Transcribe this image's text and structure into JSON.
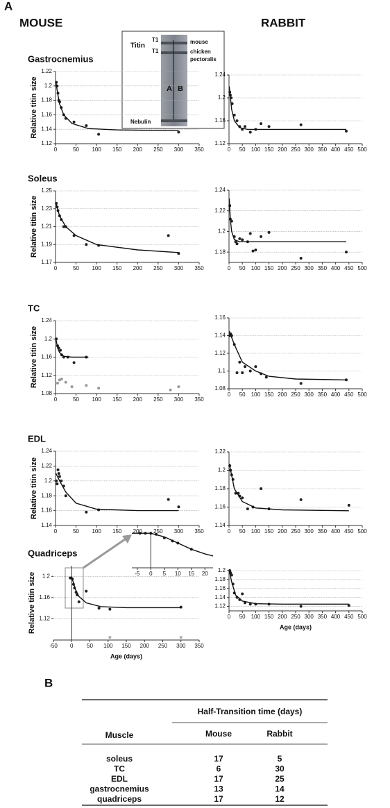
{
  "figure": {
    "panel_a": "A",
    "mouse": "MOUSE",
    "rabbit": "RABBIT"
  },
  "gel": {
    "titin": "Titin",
    "t1_top": "T1",
    "t1_bottom": "T1",
    "mouse": "mouse",
    "chicken": "chicken",
    "pectoralis": "pectoralis",
    "lane_a": "A",
    "lane_b": "B",
    "nebulin": "Nebulin"
  },
  "chart_data": [
    {
      "type": "scatter",
      "title": "Gastrocnemius",
      "ylabel": "Relative titin size",
      "xlim": [
        0,
        350
      ],
      "xticks": [
        0,
        50,
        100,
        150,
        200,
        250,
        300,
        350
      ],
      "ylim": [
        1.12,
        1.22
      ],
      "yticks": [
        1.12,
        1.14,
        1.16,
        1.18,
        1.2,
        1.22
      ],
      "grid": true,
      "series": [
        {
          "color": "#222",
          "x": [
            2,
            4,
            6,
            8,
            10,
            14,
            20,
            25,
            45,
            75,
            105,
            300
          ],
          "y": [
            1.205,
            1.2,
            1.19,
            1.18,
            1.178,
            1.17,
            1.16,
            1.155,
            1.15,
            1.145,
            1.133,
            1.136
          ]
        }
      ],
      "fit": {
        "x": [
          1,
          5,
          10,
          20,
          40,
          80,
          150,
          300
        ],
        "y": [
          1.205,
          1.19,
          1.175,
          1.16,
          1.148,
          1.141,
          1.139,
          1.138
        ]
      }
    },
    {
      "type": "scatter",
      "xlim": [
        0,
        500
      ],
      "xticks": [
        0,
        50,
        100,
        150,
        200,
        250,
        300,
        350,
        400,
        450,
        500
      ],
      "ylim": [
        1.12,
        1.24
      ],
      "yticks": [
        1.12,
        1.16,
        1.2,
        1.24
      ],
      "grid": true,
      "series": [
        {
          "color": "#222",
          "x": [
            3,
            5,
            8,
            12,
            20,
            30,
            40,
            50,
            60,
            80,
            100,
            120,
            150,
            270,
            440
          ],
          "y": [
            1.21,
            1.205,
            1.2,
            1.19,
            1.17,
            1.16,
            1.15,
            1.145,
            1.15,
            1.14,
            1.145,
            1.155,
            1.15,
            1.153,
            1.142
          ]
        }
      ],
      "fit": {
        "x": [
          1,
          10,
          20,
          40,
          70,
          150,
          440
        ],
        "y": [
          1.22,
          1.18,
          1.16,
          1.148,
          1.145,
          1.145,
          1.145
        ]
      }
    },
    {
      "type": "scatter",
      "title": "Soleus",
      "ylabel": "Relative titin size",
      "xlim": [
        0,
        350
      ],
      "xticks": [
        0,
        50,
        100,
        150,
        200,
        250,
        300,
        350
      ],
      "ylim": [
        1.17,
        1.25
      ],
      "yticks": [
        1.17,
        1.19,
        1.21,
        1.23,
        1.25
      ],
      "grid": true,
      "series": [
        {
          "color": "#222",
          "x": [
            2,
            4,
            6,
            10,
            14,
            20,
            25,
            45,
            75,
            105,
            275,
            300
          ],
          "y": [
            1.236,
            1.232,
            1.228,
            1.222,
            1.218,
            1.21,
            1.21,
            1.2,
            1.19,
            1.189,
            1.2,
            1.18
          ]
        }
      ],
      "fit": {
        "x": [
          1,
          10,
          25,
          50,
          100,
          200,
          300
        ],
        "y": [
          1.236,
          1.222,
          1.21,
          1.2,
          1.19,
          1.184,
          1.181
        ]
      }
    },
    {
      "type": "scatter",
      "xlim": [
        0,
        500
      ],
      "xticks": [
        0,
        50,
        100,
        150,
        200,
        250,
        300,
        350,
        400,
        450,
        500
      ],
      "ylim": [
        1.17,
        1.24
      ],
      "yticks": [
        1.18,
        1.2,
        1.22,
        1.24
      ],
      "grid": true,
      "series": [
        {
          "color": "#222",
          "x": [
            3,
            5,
            10,
            20,
            25,
            30,
            40,
            50,
            70,
            80,
            90,
            100,
            120,
            150,
            270,
            440
          ],
          "y": [
            1.225,
            1.212,
            1.21,
            1.195,
            1.19,
            1.188,
            1.193,
            1.192,
            1.19,
            1.198,
            1.181,
            1.182,
            1.195,
            1.199,
            1.174,
            1.18
          ]
        }
      ],
      "fit": {
        "x": [
          1,
          5,
          10,
          20,
          40,
          440
        ],
        "y": [
          1.232,
          1.212,
          1.2,
          1.192,
          1.19,
          1.19
        ]
      }
    },
    {
      "type": "scatter",
      "title": "TC",
      "ylabel": "Relative titin size",
      "xlim": [
        0,
        350
      ],
      "xticks": [
        0,
        50,
        100,
        150,
        200,
        250,
        300,
        350
      ],
      "ylim": [
        1.08,
        1.24
      ],
      "yticks": [
        1.08,
        1.12,
        1.16,
        1.2,
        1.24
      ],
      "grid": true,
      "series": [
        {
          "color": "#222",
          "x": [
            2,
            5,
            8,
            12,
            15,
            20,
            30,
            45,
            75
          ],
          "y": [
            1.2,
            1.185,
            1.18,
            1.175,
            1.165,
            1.16,
            1.16,
            1.148,
            1.16
          ]
        },
        {
          "color": "#999",
          "x": [
            5,
            10,
            15,
            25,
            40,
            75,
            105,
            280,
            300
          ],
          "y": [
            1.103,
            1.11,
            1.112,
            1.105,
            1.095,
            1.098,
            1.092,
            1.088,
            1.095
          ]
        }
      ],
      "fit": {
        "x": [
          1,
          5,
          10,
          20,
          40,
          80
        ],
        "y": [
          1.2,
          1.18,
          1.17,
          1.162,
          1.16,
          1.16
        ]
      }
    },
    {
      "type": "scatter",
      "xlim": [
        0,
        500
      ],
      "xticks": [
        0,
        50,
        100,
        150,
        200,
        250,
        300,
        350,
        400,
        450,
        500
      ],
      "ylim": [
        1.08,
        1.16
      ],
      "yticks": [
        1.08,
        1.1,
        1.12,
        1.14,
        1.16
      ],
      "grid": true,
      "series": [
        {
          "color": "#222",
          "x": [
            3,
            6,
            10,
            20,
            30,
            40,
            50,
            60,
            80,
            100,
            120,
            140,
            270,
            440
          ],
          "y": [
            1.14,
            1.142,
            1.14,
            1.13,
            1.098,
            1.11,
            1.098,
            1.105,
            1.1,
            1.105,
            1.097,
            1.093,
            1.086,
            1.09
          ]
        }
      ],
      "fit": {
        "x": [
          1,
          20,
          50,
          100,
          150,
          250,
          440
        ],
        "y": [
          1.145,
          1.13,
          1.11,
          1.1,
          1.094,
          1.091,
          1.09
        ]
      }
    },
    {
      "type": "scatter",
      "title": "EDL",
      "ylabel": "Relative titin size",
      "xlim": [
        0,
        350
      ],
      "xticks": [
        0,
        50,
        100,
        150,
        200,
        250,
        300,
        350
      ],
      "ylim": [
        1.14,
        1.24
      ],
      "yticks": [
        1.14,
        1.16,
        1.18,
        1.2,
        1.22,
        1.24
      ],
      "grid": true,
      "series": [
        {
          "color": "#222",
          "x": [
            2,
            4,
            6,
            8,
            10,
            14,
            20,
            25,
            75,
            105,
            275,
            300
          ],
          "y": [
            1.2,
            1.196,
            1.215,
            1.21,
            1.206,
            1.2,
            1.193,
            1.18,
            1.158,
            1.161,
            1.175,
            1.165
          ]
        }
      ],
      "fit": {
        "x": [
          1,
          10,
          25,
          50,
          100,
          200,
          300
        ],
        "y": [
          1.21,
          1.2,
          1.185,
          1.17,
          1.162,
          1.16,
          1.16
        ]
      }
    },
    {
      "type": "scatter",
      "xlim": [
        0,
        500
      ],
      "xticks": [
        0,
        50,
        100,
        150,
        200,
        250,
        300,
        350,
        400,
        450,
        500
      ],
      "ylim": [
        1.14,
        1.22
      ],
      "yticks": [
        1.14,
        1.16,
        1.18,
        1.2,
        1.22
      ],
      "grid": true,
      "series": [
        {
          "color": "#222",
          "x": [
            3,
            6,
            10,
            15,
            25,
            35,
            40,
            50,
            70,
            90,
            120,
            150,
            270,
            450
          ],
          "y": [
            1.205,
            1.2,
            1.195,
            1.19,
            1.175,
            1.175,
            1.172,
            1.17,
            1.158,
            1.16,
            1.18,
            1.158,
            1.168,
            1.162
          ]
        }
      ],
      "fit": {
        "x": [
          1,
          20,
          50,
          100,
          200,
          450
        ],
        "y": [
          1.207,
          1.18,
          1.166,
          1.159,
          1.157,
          1.156
        ]
      }
    },
    {
      "type": "scatter",
      "title": "Quadriceps",
      "ylabel": "Relative titin size",
      "xlabel": "Age (days)",
      "xlim": [
        -50,
        350
      ],
      "xticks": [
        -50,
        0,
        50,
        100,
        150,
        200,
        250,
        300,
        350
      ],
      "ylim": [
        1.08,
        1.22
      ],
      "yticks": [
        1.12,
        1.16,
        1.2
      ],
      "grid": true,
      "series": [
        {
          "color": "#222",
          "x": [
            -4,
            -1,
            2,
            5,
            8,
            12,
            15,
            20,
            40,
            75,
            105,
            300
          ],
          "y": [
            1.197,
            1.197,
            1.195,
            1.185,
            1.178,
            1.17,
            1.165,
            1.152,
            1.172,
            1.14,
            1.138,
            1.142
          ]
        },
        {
          "color": "#aaa",
          "x": [
            105,
            300
          ],
          "y": [
            1.085,
            1.085
          ]
        }
      ],
      "fit": {
        "x": [
          -5,
          0,
          5,
          10,
          20,
          40,
          80,
          150,
          300
        ],
        "y": [
          1.197,
          1.197,
          1.188,
          1.176,
          1.162,
          1.15,
          1.143,
          1.141,
          1.141
        ]
      }
    },
    {
      "type": "scatter",
      "xlim": [
        -7,
        23
      ],
      "xticks": [
        -5,
        0,
        5,
        10,
        15,
        20
      ],
      "ylim": [
        1.13,
        1.2
      ],
      "grid": false,
      "series": [
        {
          "color": "#222",
          "x": [
            -4,
            -2,
            0,
            2,
            5,
            8,
            10,
            15
          ],
          "y": [
            1.197,
            1.197,
            1.197,
            1.195,
            1.188,
            1.182,
            1.178,
            1.166
          ]
        }
      ],
      "fit": {
        "x": [
          -7,
          0,
          5,
          10,
          15,
          20,
          23
        ],
        "y": [
          1.197,
          1.197,
          1.19,
          1.178,
          1.166,
          1.157,
          1.153
        ]
      }
    },
    {
      "type": "scatter",
      "xlabel": "Age (days)",
      "xlim": [
        0,
        500
      ],
      "xticks": [
        0,
        50,
        100,
        150,
        200,
        250,
        300,
        350,
        400,
        450,
        500
      ],
      "ylim": [
        1.11,
        1.2
      ],
      "yticks": [
        1.12,
        1.14,
        1.16,
        1.18,
        1.2
      ],
      "grid": true,
      "series": [
        {
          "color": "#222",
          "x": [
            3,
            6,
            10,
            15,
            20,
            30,
            40,
            50,
            60,
            80,
            100,
            150,
            270,
            450
          ],
          "y": [
            1.2,
            1.195,
            1.19,
            1.17,
            1.15,
            1.14,
            1.135,
            1.148,
            1.128,
            1.125,
            1.125,
            1.125,
            1.12,
            1.122
          ]
        }
      ],
      "fit": {
        "x": [
          1,
          10,
          25,
          50,
          100,
          200,
          450
        ],
        "y": [
          1.2,
          1.175,
          1.145,
          1.132,
          1.126,
          1.125,
          1.125
        ]
      }
    }
  ],
  "table": {
    "label": "B",
    "group_header": "Half-Transition time (days)",
    "columns": [
      "Muscle",
      "Mouse",
      "Rabbit"
    ],
    "rows": [
      [
        "soleus",
        17,
        5
      ],
      [
        "TC",
        6,
        30
      ],
      [
        "EDL",
        17,
        25
      ],
      [
        "gastrocnemius",
        13,
        14
      ],
      [
        "quadriceps",
        17,
        12
      ]
    ]
  }
}
